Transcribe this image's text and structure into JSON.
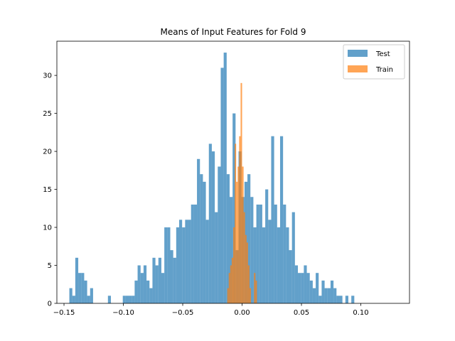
{
  "chart_data": {
    "type": "bar",
    "title": "Means of Input Features for Fold 9",
    "xlabel": "",
    "ylabel": "",
    "xlim": [
      -0.156,
      0.141
    ],
    "ylim": [
      0,
      34.5
    ],
    "xticks": [
      -0.15,
      -0.1,
      -0.05,
      0.0,
      0.05,
      0.1
    ],
    "xtick_labels": [
      "−0.15",
      "−0.10",
      "−0.05",
      "0.00",
      "0.05",
      "0.10"
    ],
    "yticks": [
      0,
      5,
      10,
      15,
      20,
      25,
      30
    ],
    "ytick_labels": [
      "0",
      "5",
      "10",
      "15",
      "20",
      "25",
      "30"
    ],
    "grid": false,
    "legend_position": "top-right",
    "series": [
      {
        "name": "Test",
        "color": "#1f77b4",
        "opacity": 0.7,
        "bin_start": -0.1455,
        "bin_width": 0.0025,
        "counts": [
          2,
          1,
          6,
          4,
          4,
          3,
          1,
          2,
          0,
          0,
          0,
          0,
          0,
          1,
          0,
          0,
          0,
          0,
          1,
          1,
          1,
          1,
          3,
          5,
          4,
          5,
          3,
          2,
          6,
          5,
          6,
          4,
          10,
          10,
          7,
          6,
          10,
          11,
          10,
          11,
          11,
          13,
          13,
          19,
          17,
          16,
          11,
          21,
          20,
          12,
          18,
          31,
          33,
          17,
          14,
          25,
          7,
          20,
          14,
          16,
          17,
          14,
          10,
          13,
          13,
          10,
          15,
          11,
          22,
          13,
          10,
          22,
          13,
          10,
          7,
          12,
          5,
          4,
          4,
          5,
          4,
          3,
          2,
          4,
          1,
          3,
          2,
          2,
          3,
          2,
          1,
          1,
          0,
          1,
          0,
          1
        ],
        "legend_label": "Test"
      },
      {
        "name": "Train",
        "color": "#ff7f0e",
        "opacity": 0.7,
        "bin_start": -0.0125,
        "bin_width": 0.00125,
        "counts": [
          2,
          4,
          5,
          6,
          10,
          21,
          16,
          18,
          22,
          29,
          18,
          12,
          9,
          8,
          5,
          2,
          0,
          0,
          4,
          3
        ],
        "legend_label": "Train"
      }
    ]
  }
}
